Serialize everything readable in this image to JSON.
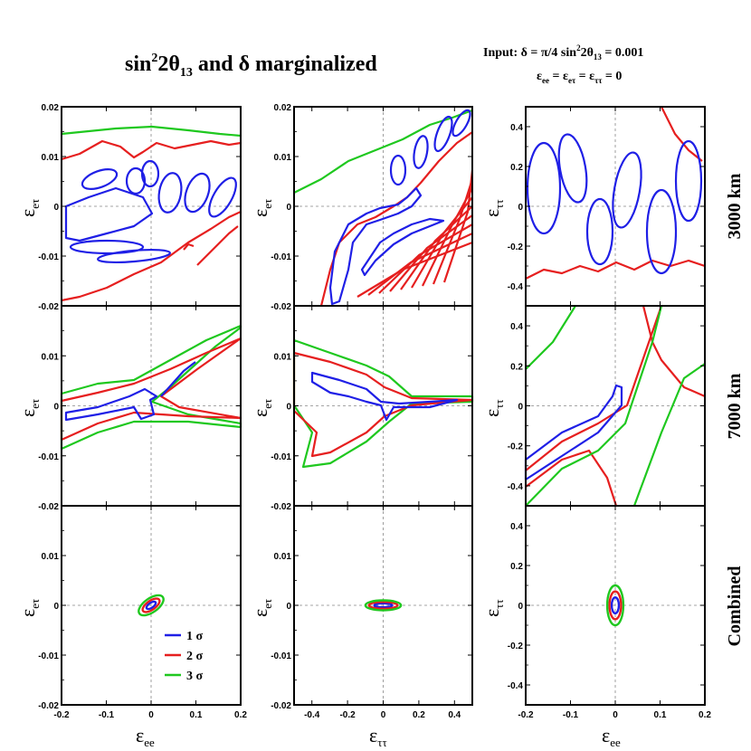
{
  "chart_data": {
    "type": "contour",
    "title": {
      "main": "sin",
      "sup": "2",
      "theta": "2θ",
      "sub": "13",
      "rest": " and δ marginalized"
    },
    "input_text": {
      "line1_a": "Input:  δ =  π/4     sin",
      "line1_sup": "2",
      "line1_b": "2θ",
      "line1_sub": "13",
      "line1_c": " = 0.001",
      "line2_e1": "ε",
      "line2_s1": "ee",
      "line2_e2": " = ε",
      "line2_s2": "eτ",
      "line2_e3": " = ε",
      "line2_s3": "ττ",
      "line2_end": " = 0"
    },
    "row_labels": [
      "3000 km",
      "7000 km",
      "Combined"
    ],
    "axis_labels": {
      "epsilon": "ε",
      "ee": "ee",
      "et": "eτ",
      "tt": "ττ"
    },
    "columns": [
      {
        "x": "ee",
        "y": "et",
        "xlim": [
          -0.2,
          0.2
        ],
        "ylim": [
          -0.02,
          0.02
        ]
      },
      {
        "x": "tt",
        "y": "et",
        "xlim": [
          -0.5,
          0.5
        ],
        "ylim": [
          -0.02,
          0.02
        ]
      },
      {
        "x": "ee",
        "y": "tt",
        "xlim": [
          -0.2,
          0.2
        ],
        "ylim": [
          -0.5,
          0.5
        ]
      }
    ],
    "ticks": {
      "ee_x": [
        "-0.2",
        "-0.1",
        "0",
        "0.1",
        "0.2"
      ],
      "tt_x": [
        "-0.4",
        "-0.2",
        "0",
        "0.2",
        "0.4"
      ],
      "et_y": [
        "0.02",
        "0.01",
        "0",
        "-0.01",
        "-0.02"
      ],
      "tt_y": [
        "0.4",
        "0.2",
        "0",
        "-0.2",
        "-0.4"
      ]
    },
    "legend": {
      "entries": [
        {
          "label": "1 σ",
          "color": "#1f1fe6"
        },
        {
          "label": "2 σ",
          "color": "#e61f1f"
        },
        {
          "label": "3 σ",
          "color": "#1fc81f"
        }
      ],
      "panel": "combined, ε_ee vs ε_eτ"
    },
    "combined_ellipses_note": "Combined row: 1σ/2σ/3σ nested ellipses centred at 0",
    "combined": [
      {
        "panel": 0,
        "cx": 0.0,
        "cy": 0.0,
        "semi_axes": [
          [
            0.012,
            0.0005
          ],
          [
            0.022,
            0.0009
          ],
          [
            0.032,
            0.0014
          ]
        ],
        "tilt_deg": 35
      },
      {
        "panel": 1,
        "cx": 0.0,
        "cy": 0.0,
        "semi_axes": [
          [
            0.05,
            0.0004
          ],
          [
            0.08,
            0.0007
          ],
          [
            0.1,
            0.001
          ]
        ],
        "tilt_deg": 0
      },
      {
        "panel": 2,
        "cx": 0.0,
        "cy": 0.0,
        "semi_axes": [
          [
            0.008,
            0.04
          ],
          [
            0.013,
            0.07
          ],
          [
            0.018,
            0.1
          ]
        ],
        "tilt_deg": 0
      }
    ],
    "colors": {
      "one_sigma": "#1f1fe6",
      "two_sigma": "#e61f1f",
      "three_sigma": "#1fc81f",
      "grid": "#888888"
    }
  }
}
